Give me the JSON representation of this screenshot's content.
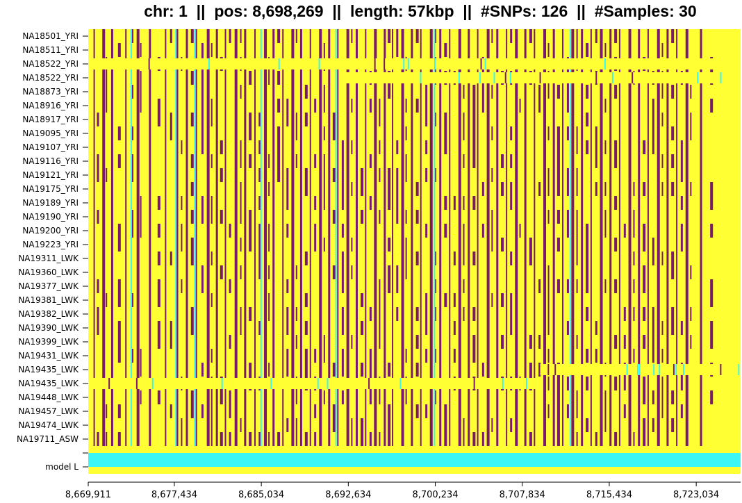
{
  "chart_data": {
    "type": "heatmap",
    "title": "chr: 1  ||  pos: 8,698,269  ||  length: 57kbp  ||  #SNPs: 126  ||  #Samples: 30",
    "samples": [
      "NA18501_YRI",
      "NA18511_YRI",
      "NA18522_YRI",
      "NA18522_YRI",
      "NA18873_YRI",
      "NA18916_YRI",
      "NA18917_YRI",
      "NA19095_YRI",
      "NA19107_YRI",
      "NA19116_YRI",
      "NA19121_YRI",
      "NA19175_YRI",
      "NA19189_YRI",
      "NA19190_YRI",
      "NA19200_YRI",
      "NA19223_YRI",
      "NA19311_LWK",
      "NA19360_LWK",
      "NA19377_LWK",
      "NA19381_LWK",
      "NA19382_LWK",
      "NA19390_LWK",
      "NA19399_LWK",
      "NA19431_LWK",
      "NA19435_LWK",
      "NA19435_LWK",
      "NA19448_LWK",
      "NA19457_LWK",
      "NA19474_LWK",
      "NA19711_ASW"
    ],
    "extra_rows": [
      "",
      "model L"
    ],
    "x_ticks": [
      8669911,
      8677434,
      8685034,
      8692634,
      8700234,
      8707834,
      8715434,
      8723034
    ],
    "x_tick_labels": [
      "8,669,911",
      "8,677,434",
      "8,685,034",
      "8,692,634",
      "8,700,234",
      "8,707,834",
      "8,715,434",
      "8,723,034"
    ],
    "xlim": [
      8669911,
      8726911
    ],
    "n_snps": 126,
    "colors": {
      "background": "#ffff33",
      "minor_allele": "#7a1a6e",
      "highlight": "#3cf5f5"
    },
    "snp_positions": [
      8670371,
      8670671,
      8671141,
      8671441,
      8671911,
      8672511,
      8673141,
      8673671,
      8674141,
      8674441,
      8675211,
      8675971,
      8676611,
      8677061,
      8677531,
      8678011,
      8678441,
      8678881,
      8679301,
      8679801,
      8680271,
      8680641,
      8681061,
      8681431,
      8681841,
      8682211,
      8682701,
      8683181,
      8683531,
      8683941,
      8684421,
      8684801,
      8685271,
      8685641,
      8686011,
      8686431,
      8686861,
      8687231,
      8687661,
      8688051,
      8688421,
      8688841,
      8689261,
      8689651,
      8690081,
      8690481,
      8690871,
      8691271,
      8691661,
      8692061,
      8692471,
      8692881,
      8693281,
      8693711,
      8694091,
      8694491,
      8694881,
      8695311,
      8695731,
      8696081,
      8696441,
      8696821,
      8697261,
      8697631,
      8698101,
      8698541,
      8698911,
      8699361,
      8699761,
      8700201,
      8700581,
      8701011,
      8701431,
      8701831,
      8702251,
      8702661,
      8703071,
      8703501,
      8703881,
      8704321,
      8704731,
      8705141,
      8705561,
      8705971,
      8706401,
      8706771,
      8707201,
      8707581,
      8708011,
      8708451,
      8708841,
      8709251,
      8709671,
      8710071,
      8710501,
      8710881,
      8711311,
      8711731,
      8712121,
      8712561,
      8712961,
      8713381,
      8713791,
      8714211,
      8714621,
      8715041,
      8715451,
      8715871,
      8716281,
      8716701,
      8717111,
      8717531,
      8717941,
      8718361,
      8718771,
      8719191,
      8719611,
      8720021,
      8720441,
      8720851,
      8721271,
      8721681,
      8722101,
      8722501,
      8723361,
      8724251
    ],
    "conserved_snps": [
      0,
      2,
      4,
      6,
      8,
      10,
      12,
      14,
      16,
      18,
      20,
      22,
      24,
      26,
      28,
      30,
      32,
      34,
      36,
      38,
      40,
      42,
      44,
      46,
      48,
      50,
      52,
      54,
      56,
      58,
      60,
      62,
      64,
      66,
      68,
      70,
      72,
      74,
      76,
      78,
      80,
      82,
      84,
      86,
      88,
      90,
      92,
      94,
      96,
      98,
      100,
      102,
      104,
      106,
      108,
      110,
      112,
      114,
      116,
      118,
      120,
      122,
      124
    ],
    "highlight_columns": [
      8673611,
      8677511,
      8679171,
      8684951,
      8691501,
      8700101,
      8711981
    ],
    "divergent_rows": [
      {
        "row": 2,
        "from": 8670311,
        "to": 8726911
      },
      {
        "row": 3,
        "from": 8692101,
        "to": 8726911
      },
      {
        "row": 25,
        "from": 8670011,
        "to": 8709401
      },
      {
        "row": 24,
        "from": 8709401,
        "to": 8726911
      }
    ],
    "xlabel": "",
    "ylabel": ""
  }
}
